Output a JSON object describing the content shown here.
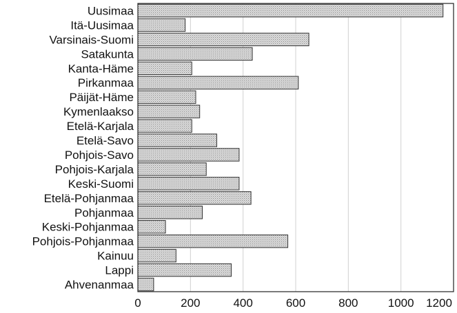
{
  "chart_data": {
    "type": "bar",
    "orientation": "horizontal",
    "categories": [
      "Uusimaa",
      "Itä-Uusimaa",
      "Varsinais-Suomi",
      "Satakunta",
      "Kanta-Häme",
      "Pirkanmaa",
      "Päijät-Häme",
      "Kymenlaakso",
      "Etelä-Karjala",
      "Etelä-Savo",
      "Pohjois-Savo",
      "Pohjois-Karjala",
      "Keski-Suomi",
      "Etelä-Pohjanmaa",
      "Pohjanmaa",
      "Keski-Pohjanmaa",
      "Pohjois-Pohjanmaa",
      "Kainuu",
      "Lappi",
      "Ahvenanmaa"
    ],
    "values": [
      1160,
      180,
      650,
      435,
      205,
      610,
      220,
      235,
      205,
      300,
      385,
      260,
      385,
      430,
      245,
      105,
      570,
      145,
      355,
      60
    ],
    "title": "",
    "xlabel": "",
    "ylabel": "",
    "xlim": [
      0,
      1200
    ],
    "xticks": [
      0,
      200,
      400,
      600,
      800,
      1000,
      1200
    ],
    "grid": "vertical",
    "legend": "none",
    "bar_color": "#c8c8c8"
  }
}
